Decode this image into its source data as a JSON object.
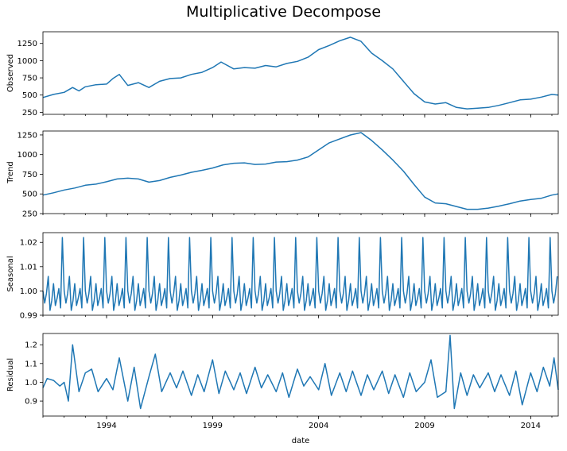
{
  "chart_data": {
    "type": "line",
    "title": "Multiplicative Decompose",
    "xlabel": "date",
    "x_range": [
      "1991-01",
      "2015-04"
    ],
    "x_ticks": [
      "1994",
      "1999",
      "2004",
      "2009",
      "2014"
    ],
    "line_color": "#1f77b4",
    "grid": false,
    "panels": [
      {
        "ylabel": "Observed",
        "ylim": [
          220,
          1420
        ],
        "yticks": [
          "250",
          "500",
          "750",
          "1000",
          "1250"
        ],
        "points": [
          [
            1991.0,
            465
          ],
          [
            1991.5,
            510
          ],
          [
            1992.0,
            540
          ],
          [
            1992.4,
            610
          ],
          [
            1992.7,
            560
          ],
          [
            1993.0,
            620
          ],
          [
            1993.5,
            650
          ],
          [
            1994.0,
            660
          ],
          [
            1994.3,
            740
          ],
          [
            1994.6,
            800
          ],
          [
            1995.0,
            640
          ],
          [
            1995.5,
            680
          ],
          [
            1996.0,
            610
          ],
          [
            1996.5,
            700
          ],
          [
            1997.0,
            740
          ],
          [
            1997.5,
            750
          ],
          [
            1998.0,
            800
          ],
          [
            1998.5,
            830
          ],
          [
            1999.0,
            900
          ],
          [
            1999.4,
            980
          ],
          [
            2000.0,
            880
          ],
          [
            2000.5,
            900
          ],
          [
            2001.0,
            890
          ],
          [
            2001.5,
            930
          ],
          [
            2002.0,
            910
          ],
          [
            2002.5,
            960
          ],
          [
            2003.0,
            990
          ],
          [
            2003.5,
            1050
          ],
          [
            2004.0,
            1160
          ],
          [
            2004.5,
            1220
          ],
          [
            2005.0,
            1290
          ],
          [
            2005.5,
            1340
          ],
          [
            2006.0,
            1280
          ],
          [
            2006.5,
            1110
          ],
          [
            2007.0,
            1000
          ],
          [
            2007.5,
            880
          ],
          [
            2008.0,
            700
          ],
          [
            2008.5,
            520
          ],
          [
            2009.0,
            400
          ],
          [
            2009.5,
            370
          ],
          [
            2010.0,
            390
          ],
          [
            2010.5,
            320
          ],
          [
            2011.0,
            300
          ],
          [
            2011.5,
            310
          ],
          [
            2012.0,
            320
          ],
          [
            2012.5,
            350
          ],
          [
            2013.0,
            390
          ],
          [
            2013.5,
            430
          ],
          [
            2014.0,
            440
          ],
          [
            2014.5,
            470
          ],
          [
            2015.0,
            510
          ],
          [
            2015.3,
            500
          ]
        ]
      },
      {
        "ylabel": "Trend",
        "ylim": [
          250,
          1300
        ],
        "yticks": [
          "250",
          "500",
          "750",
          "1000",
          "1250"
        ],
        "points": [
          [
            1991.0,
            485
          ],
          [
            1991.5,
            515
          ],
          [
            1992.0,
            550
          ],
          [
            1992.5,
            575
          ],
          [
            1993.0,
            610
          ],
          [
            1993.5,
            625
          ],
          [
            1994.0,
            655
          ],
          [
            1994.5,
            690
          ],
          [
            1995.0,
            700
          ],
          [
            1995.5,
            690
          ],
          [
            1996.0,
            650
          ],
          [
            1996.5,
            670
          ],
          [
            1997.0,
            710
          ],
          [
            1997.5,
            740
          ],
          [
            1998.0,
            775
          ],
          [
            1998.5,
            800
          ],
          [
            1999.0,
            830
          ],
          [
            1999.5,
            870
          ],
          [
            2000.0,
            890
          ],
          [
            2000.5,
            895
          ],
          [
            2001.0,
            875
          ],
          [
            2001.5,
            880
          ],
          [
            2002.0,
            905
          ],
          [
            2002.5,
            910
          ],
          [
            2003.0,
            930
          ],
          [
            2003.5,
            970
          ],
          [
            2004.0,
            1060
          ],
          [
            2004.5,
            1150
          ],
          [
            2005.0,
            1200
          ],
          [
            2005.5,
            1250
          ],
          [
            2006.0,
            1280
          ],
          [
            2006.5,
            1180
          ],
          [
            2007.0,
            1060
          ],
          [
            2007.5,
            930
          ],
          [
            2008.0,
            790
          ],
          [
            2008.5,
            620
          ],
          [
            2009.0,
            460
          ],
          [
            2009.5,
            385
          ],
          [
            2010.0,
            375
          ],
          [
            2010.5,
            340
          ],
          [
            2011.0,
            305
          ],
          [
            2011.5,
            305
          ],
          [
            2012.0,
            320
          ],
          [
            2012.5,
            345
          ],
          [
            2013.0,
            375
          ],
          [
            2013.5,
            410
          ],
          [
            2014.0,
            430
          ],
          [
            2014.5,
            445
          ],
          [
            2015.0,
            485
          ],
          [
            2015.3,
            500
          ]
        ]
      },
      {
        "ylabel": "Seasonal",
        "ylim": [
          0.99,
          1.024
        ],
        "yticks": [
          "0.99",
          "1.00",
          "1.01",
          "1.02"
        ],
        "period_pattern": [
          1.0,
          0.995,
          0.999,
          1.006,
          0.992,
          0.996,
          1.003,
          0.994,
          0.997,
          1.001,
          0.993,
          1.022
        ],
        "x_start": 1991.0,
        "x_end": 2015.3
      },
      {
        "ylabel": "Residual",
        "ylim": [
          0.82,
          1.26
        ],
        "yticks": [
          "0.9",
          "1.0",
          "1.1",
          "1.2"
        ],
        "points": [
          [
            1991.0,
            0.97
          ],
          [
            1991.2,
            1.02
          ],
          [
            1991.5,
            1.01
          ],
          [
            1991.8,
            0.98
          ],
          [
            1992.0,
            1.0
          ],
          [
            1992.2,
            0.9
          ],
          [
            1992.4,
            1.2
          ],
          [
            1992.7,
            0.95
          ],
          [
            1993.0,
            1.05
          ],
          [
            1993.3,
            1.07
          ],
          [
            1993.6,
            0.95
          ],
          [
            1994.0,
            1.02
          ],
          [
            1994.3,
            0.96
          ],
          [
            1994.6,
            1.13
          ],
          [
            1995.0,
            0.9
          ],
          [
            1995.3,
            1.08
          ],
          [
            1995.6,
            0.86
          ],
          [
            1996.0,
            1.03
          ],
          [
            1996.3,
            1.15
          ],
          [
            1996.6,
            0.95
          ],
          [
            1997.0,
            1.05
          ],
          [
            1997.3,
            0.97
          ],
          [
            1997.6,
            1.06
          ],
          [
            1998.0,
            0.93
          ],
          [
            1998.3,
            1.04
          ],
          [
            1998.6,
            0.95
          ],
          [
            1999.0,
            1.12
          ],
          [
            1999.3,
            0.94
          ],
          [
            1999.6,
            1.06
          ],
          [
            2000.0,
            0.96
          ],
          [
            2000.3,
            1.05
          ],
          [
            2000.6,
            0.94
          ],
          [
            2001.0,
            1.08
          ],
          [
            2001.3,
            0.97
          ],
          [
            2001.6,
            1.04
          ],
          [
            2002.0,
            0.95
          ],
          [
            2002.3,
            1.05
          ],
          [
            2002.6,
            0.92
          ],
          [
            2003.0,
            1.07
          ],
          [
            2003.3,
            0.98
          ],
          [
            2003.6,
            1.03
          ],
          [
            2004.0,
            0.96
          ],
          [
            2004.3,
            1.1
          ],
          [
            2004.6,
            0.93
          ],
          [
            2005.0,
            1.05
          ],
          [
            2005.3,
            0.95
          ],
          [
            2005.6,
            1.06
          ],
          [
            2006.0,
            0.93
          ],
          [
            2006.3,
            1.04
          ],
          [
            2006.6,
            0.96
          ],
          [
            2007.0,
            1.06
          ],
          [
            2007.3,
            0.94
          ],
          [
            2007.6,
            1.04
          ],
          [
            2008.0,
            0.92
          ],
          [
            2008.3,
            1.05
          ],
          [
            2008.6,
            0.95
          ],
          [
            2009.0,
            1.0
          ],
          [
            2009.3,
            1.12
          ],
          [
            2009.6,
            0.92
          ],
          [
            2010.0,
            0.95
          ],
          [
            2010.2,
            1.25
          ],
          [
            2010.4,
            0.86
          ],
          [
            2010.7,
            1.05
          ],
          [
            2011.0,
            0.93
          ],
          [
            2011.3,
            1.04
          ],
          [
            2011.6,
            0.97
          ],
          [
            2012.0,
            1.05
          ],
          [
            2012.3,
            0.95
          ],
          [
            2012.6,
            1.04
          ],
          [
            2013.0,
            0.93
          ],
          [
            2013.3,
            1.06
          ],
          [
            2013.6,
            0.88
          ],
          [
            2014.0,
            1.05
          ],
          [
            2014.3,
            0.95
          ],
          [
            2014.6,
            1.08
          ],
          [
            2014.9,
            0.98
          ],
          [
            2015.1,
            1.13
          ],
          [
            2015.3,
            0.96
          ]
        ]
      }
    ]
  }
}
